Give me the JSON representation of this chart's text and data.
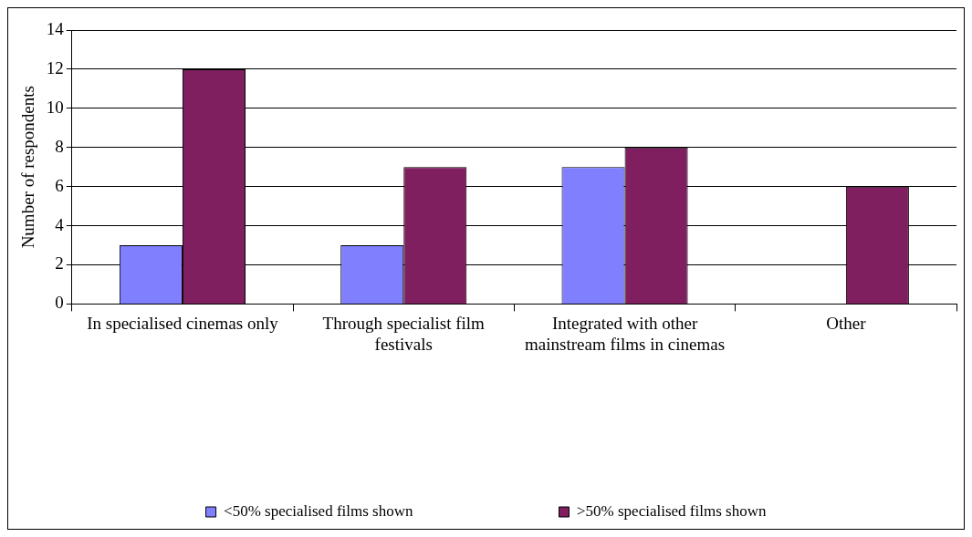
{
  "chart_data": {
    "type": "bar",
    "ylabel": "Number of respondents",
    "categories": [
      "In specialised cinemas only",
      "Through specialist film festivals",
      "Integrated with other mainstream films in cinemas",
      "Other"
    ],
    "series": [
      {
        "name": "<50% specialised films shown",
        "color": "#8080ff",
        "values": [
          3,
          3,
          7,
          0
        ]
      },
      {
        "name": ">50% specialised films shown",
        "color": "#7f1f5f",
        "values": [
          12,
          7,
          8,
          6
        ]
      }
    ],
    "ylim": [
      0,
      14
    ],
    "yticks": [
      0,
      2,
      4,
      6,
      8,
      10,
      12,
      14
    ],
    "grid": "y",
    "legend": "bottom"
  }
}
